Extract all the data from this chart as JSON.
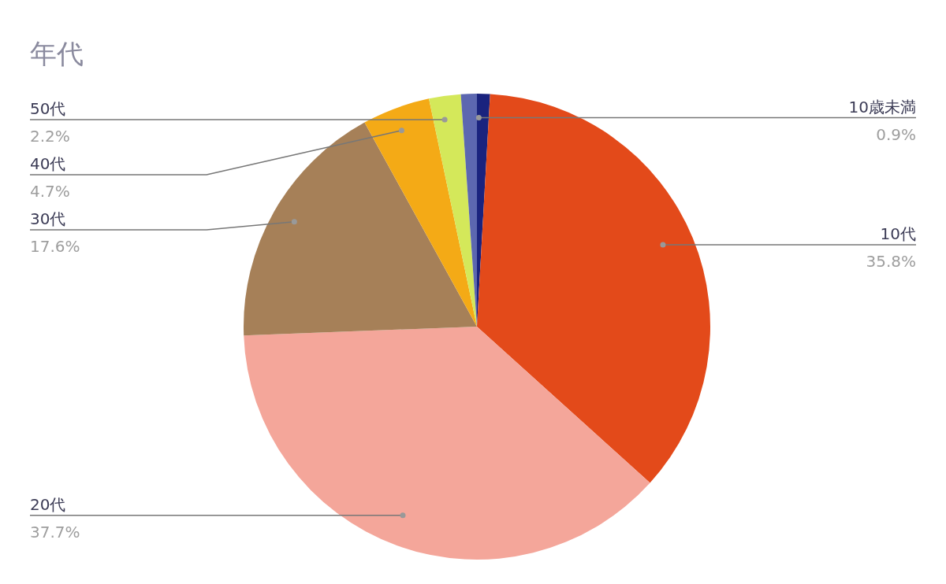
{
  "chart_data": {
    "type": "pie",
    "title": "年代",
    "categories": [
      "10歳未満",
      "10代",
      "20代",
      "30代",
      "40代",
      "50代",
      null
    ],
    "values": [
      0.9,
      35.8,
      37.7,
      17.6,
      4.7,
      2.2,
      1.1
    ],
    "colors": [
      "#1a237e",
      "#e34a1a",
      "#f4a69a",
      "#a68058",
      "#f4aa16",
      "#d4e85a",
      "#5c67b0"
    ],
    "value_labels": [
      "0.9%",
      "35.8%",
      "37.7%",
      "17.6%",
      "4.7%",
      "2.2%",
      null
    ]
  }
}
